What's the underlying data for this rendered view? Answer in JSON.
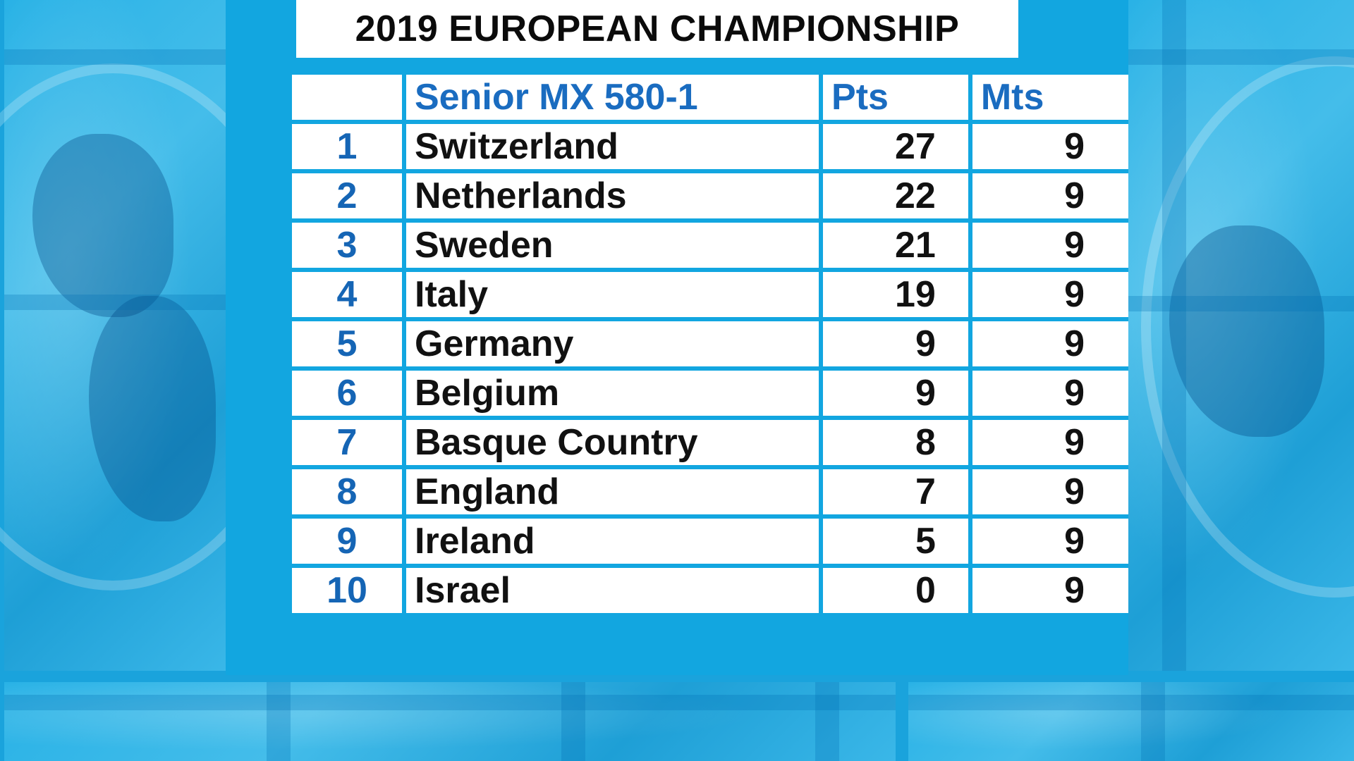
{
  "title": "2019 EUROPEAN CHAMPIONSHIP",
  "table": {
    "header": {
      "rank": "",
      "team": "Senior MX 580-1",
      "pts": "Pts",
      "mts": "Mts"
    },
    "rows": [
      {
        "rank": "1",
        "team": "Switzerland",
        "pts": "27",
        "mts": "9"
      },
      {
        "rank": "2",
        "team": "Netherlands",
        "pts": "22",
        "mts": "9"
      },
      {
        "rank": "3",
        "team": "Sweden",
        "pts": "21",
        "mts": "9"
      },
      {
        "rank": "4",
        "team": "Italy",
        "pts": "19",
        "mts": "9"
      },
      {
        "rank": "5",
        "team": "Germany",
        "pts": "9",
        "mts": "9"
      },
      {
        "rank": "6",
        "team": "Belgium",
        "pts": "9",
        "mts": "9"
      },
      {
        "rank": "7",
        "team": "Basque Country",
        "pts": "8",
        "mts": "9"
      },
      {
        "rank": "8",
        "team": "England",
        "pts": "7",
        "mts": "9"
      },
      {
        "rank": "9",
        "team": "Ireland",
        "pts": "5",
        "mts": "9"
      },
      {
        "rank": "10",
        "team": "Israel",
        "pts": "0",
        "mts": "9"
      }
    ]
  },
  "colors": {
    "background": "#1aa3dc",
    "panel": "#12a6e0",
    "header_text": "#1a6cc0",
    "rank_text": "#1565b5",
    "body_text": "#111111"
  }
}
